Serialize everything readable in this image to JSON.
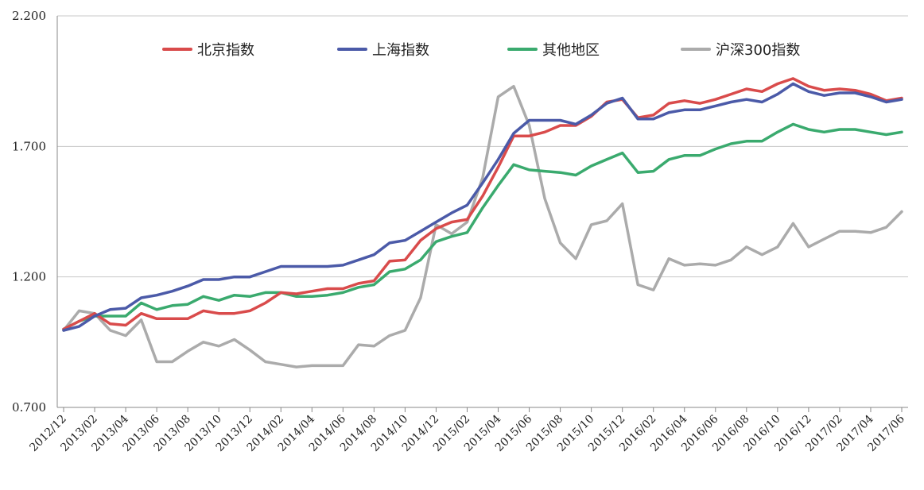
{
  "chart_data": {
    "type": "line",
    "title": "",
    "xlabel": "",
    "ylabel": "",
    "ylim": [
      0.7,
      2.2
    ],
    "y_ticks": [
      "0.700",
      "1.200",
      "1.700",
      "2.200"
    ],
    "y_tick_values": [
      0.7,
      1.2,
      1.7,
      2.2
    ],
    "x_tick_labels": [
      "2012/12",
      "2013/02",
      "2013/04",
      "2013/06",
      "2013/08",
      "2013/10",
      "2013/12",
      "2014/02",
      "2014/04",
      "2014/06",
      "2014/08",
      "2014/10",
      "2014/12",
      "2015/02",
      "2015/04",
      "2015/06",
      "2015/08",
      "2015/10",
      "2015/12",
      "2016/02",
      "2016/04",
      "2016/06",
      "2016/08",
      "2016/10",
      "2016/12",
      "2017/02",
      "2017/04",
      "2017/06"
    ],
    "x": [
      "2012/12",
      "2013/01",
      "2013/02",
      "2013/03",
      "2013/04",
      "2013/05",
      "2013/06",
      "2013/07",
      "2013/08",
      "2013/09",
      "2013/10",
      "2013/11",
      "2013/12",
      "2014/01",
      "2014/02",
      "2014/03",
      "2014/04",
      "2014/05",
      "2014/06",
      "2014/07",
      "2014/08",
      "2014/09",
      "2014/10",
      "2014/11",
      "2014/12",
      "2015/01",
      "2015/02",
      "2015/03",
      "2015/04",
      "2015/05",
      "2015/06",
      "2015/07",
      "2015/08",
      "2015/09",
      "2015/10",
      "2015/11",
      "2015/12",
      "2016/01",
      "2016/02",
      "2016/03",
      "2016/04",
      "2016/05",
      "2016/06",
      "2016/07",
      "2016/08",
      "2016/09",
      "2016/10",
      "2016/11",
      "2016/12",
      "2017/01",
      "2017/02",
      "2017/03",
      "2017/04",
      "2017/05",
      "2017/06"
    ],
    "grid": "horizontal",
    "legend_position": "top",
    "series": [
      {
        "name": "北京指数",
        "color": "#d94b4b",
        "values": [
          1.0,
          1.03,
          1.06,
          1.02,
          1.015,
          1.06,
          1.04,
          1.04,
          1.04,
          1.07,
          1.06,
          1.06,
          1.07,
          1.1,
          1.14,
          1.135,
          1.145,
          1.155,
          1.155,
          1.175,
          1.185,
          1.26,
          1.265,
          1.34,
          1.385,
          1.41,
          1.42,
          1.51,
          1.62,
          1.74,
          1.74,
          1.755,
          1.78,
          1.78,
          1.815,
          1.87,
          1.88,
          1.81,
          1.82,
          1.865,
          1.875,
          1.865,
          1.88,
          1.9,
          1.92,
          1.91,
          1.94,
          1.96,
          1.93,
          1.915,
          1.92,
          1.915,
          1.9,
          1.875,
          1.885
        ]
      },
      {
        "name": "上海指数",
        "color": "#4b5aa8",
        "values": [
          0.995,
          1.01,
          1.05,
          1.075,
          1.08,
          1.12,
          1.13,
          1.145,
          1.165,
          1.19,
          1.19,
          1.2,
          1.2,
          1.22,
          1.24,
          1.24,
          1.24,
          1.24,
          1.245,
          1.265,
          1.285,
          1.33,
          1.34,
          1.375,
          1.41,
          1.445,
          1.475,
          1.56,
          1.65,
          1.75,
          1.8,
          1.8,
          1.8,
          1.785,
          1.82,
          1.865,
          1.885,
          1.805,
          1.805,
          1.83,
          1.84,
          1.84,
          1.855,
          1.87,
          1.88,
          1.87,
          1.9,
          1.94,
          1.91,
          1.895,
          1.905,
          1.905,
          1.89,
          1.87,
          1.88
        ]
      },
      {
        "name": "其他地区",
        "color": "#3aaa6e",
        "values": [
          1.0,
          1.03,
          1.05,
          1.05,
          1.05,
          1.1,
          1.075,
          1.09,
          1.095,
          1.125,
          1.11,
          1.13,
          1.125,
          1.14,
          1.14,
          1.125,
          1.125,
          1.13,
          1.14,
          1.16,
          1.17,
          1.22,
          1.23,
          1.265,
          1.335,
          1.355,
          1.37,
          1.465,
          1.55,
          1.63,
          1.61,
          1.605,
          1.6,
          1.59,
          1.625,
          1.65,
          1.675,
          1.6,
          1.605,
          1.65,
          1.665,
          1.665,
          1.69,
          1.71,
          1.72,
          1.72,
          1.755,
          1.785,
          1.765,
          1.755,
          1.765,
          1.765,
          1.755,
          1.745,
          1.755
        ]
      },
      {
        "name": "沪深300指数",
        "color": "#ababab",
        "values": [
          0.995,
          1.07,
          1.06,
          0.995,
          0.975,
          1.035,
          0.875,
          0.875,
          0.915,
          0.95,
          0.935,
          0.96,
          0.92,
          0.875,
          0.865,
          0.855,
          0.86,
          0.86,
          0.86,
          0.94,
          0.935,
          0.975,
          0.995,
          1.12,
          1.4,
          1.365,
          1.41,
          1.58,
          1.89,
          1.93,
          1.78,
          1.5,
          1.33,
          1.27,
          1.4,
          1.415,
          1.48,
          1.17,
          1.15,
          1.27,
          1.245,
          1.25,
          1.245,
          1.265,
          1.315,
          1.285,
          1.315,
          1.405,
          1.315,
          1.345,
          1.375,
          1.375,
          1.37,
          1.39,
          1.45
        ]
      }
    ]
  }
}
